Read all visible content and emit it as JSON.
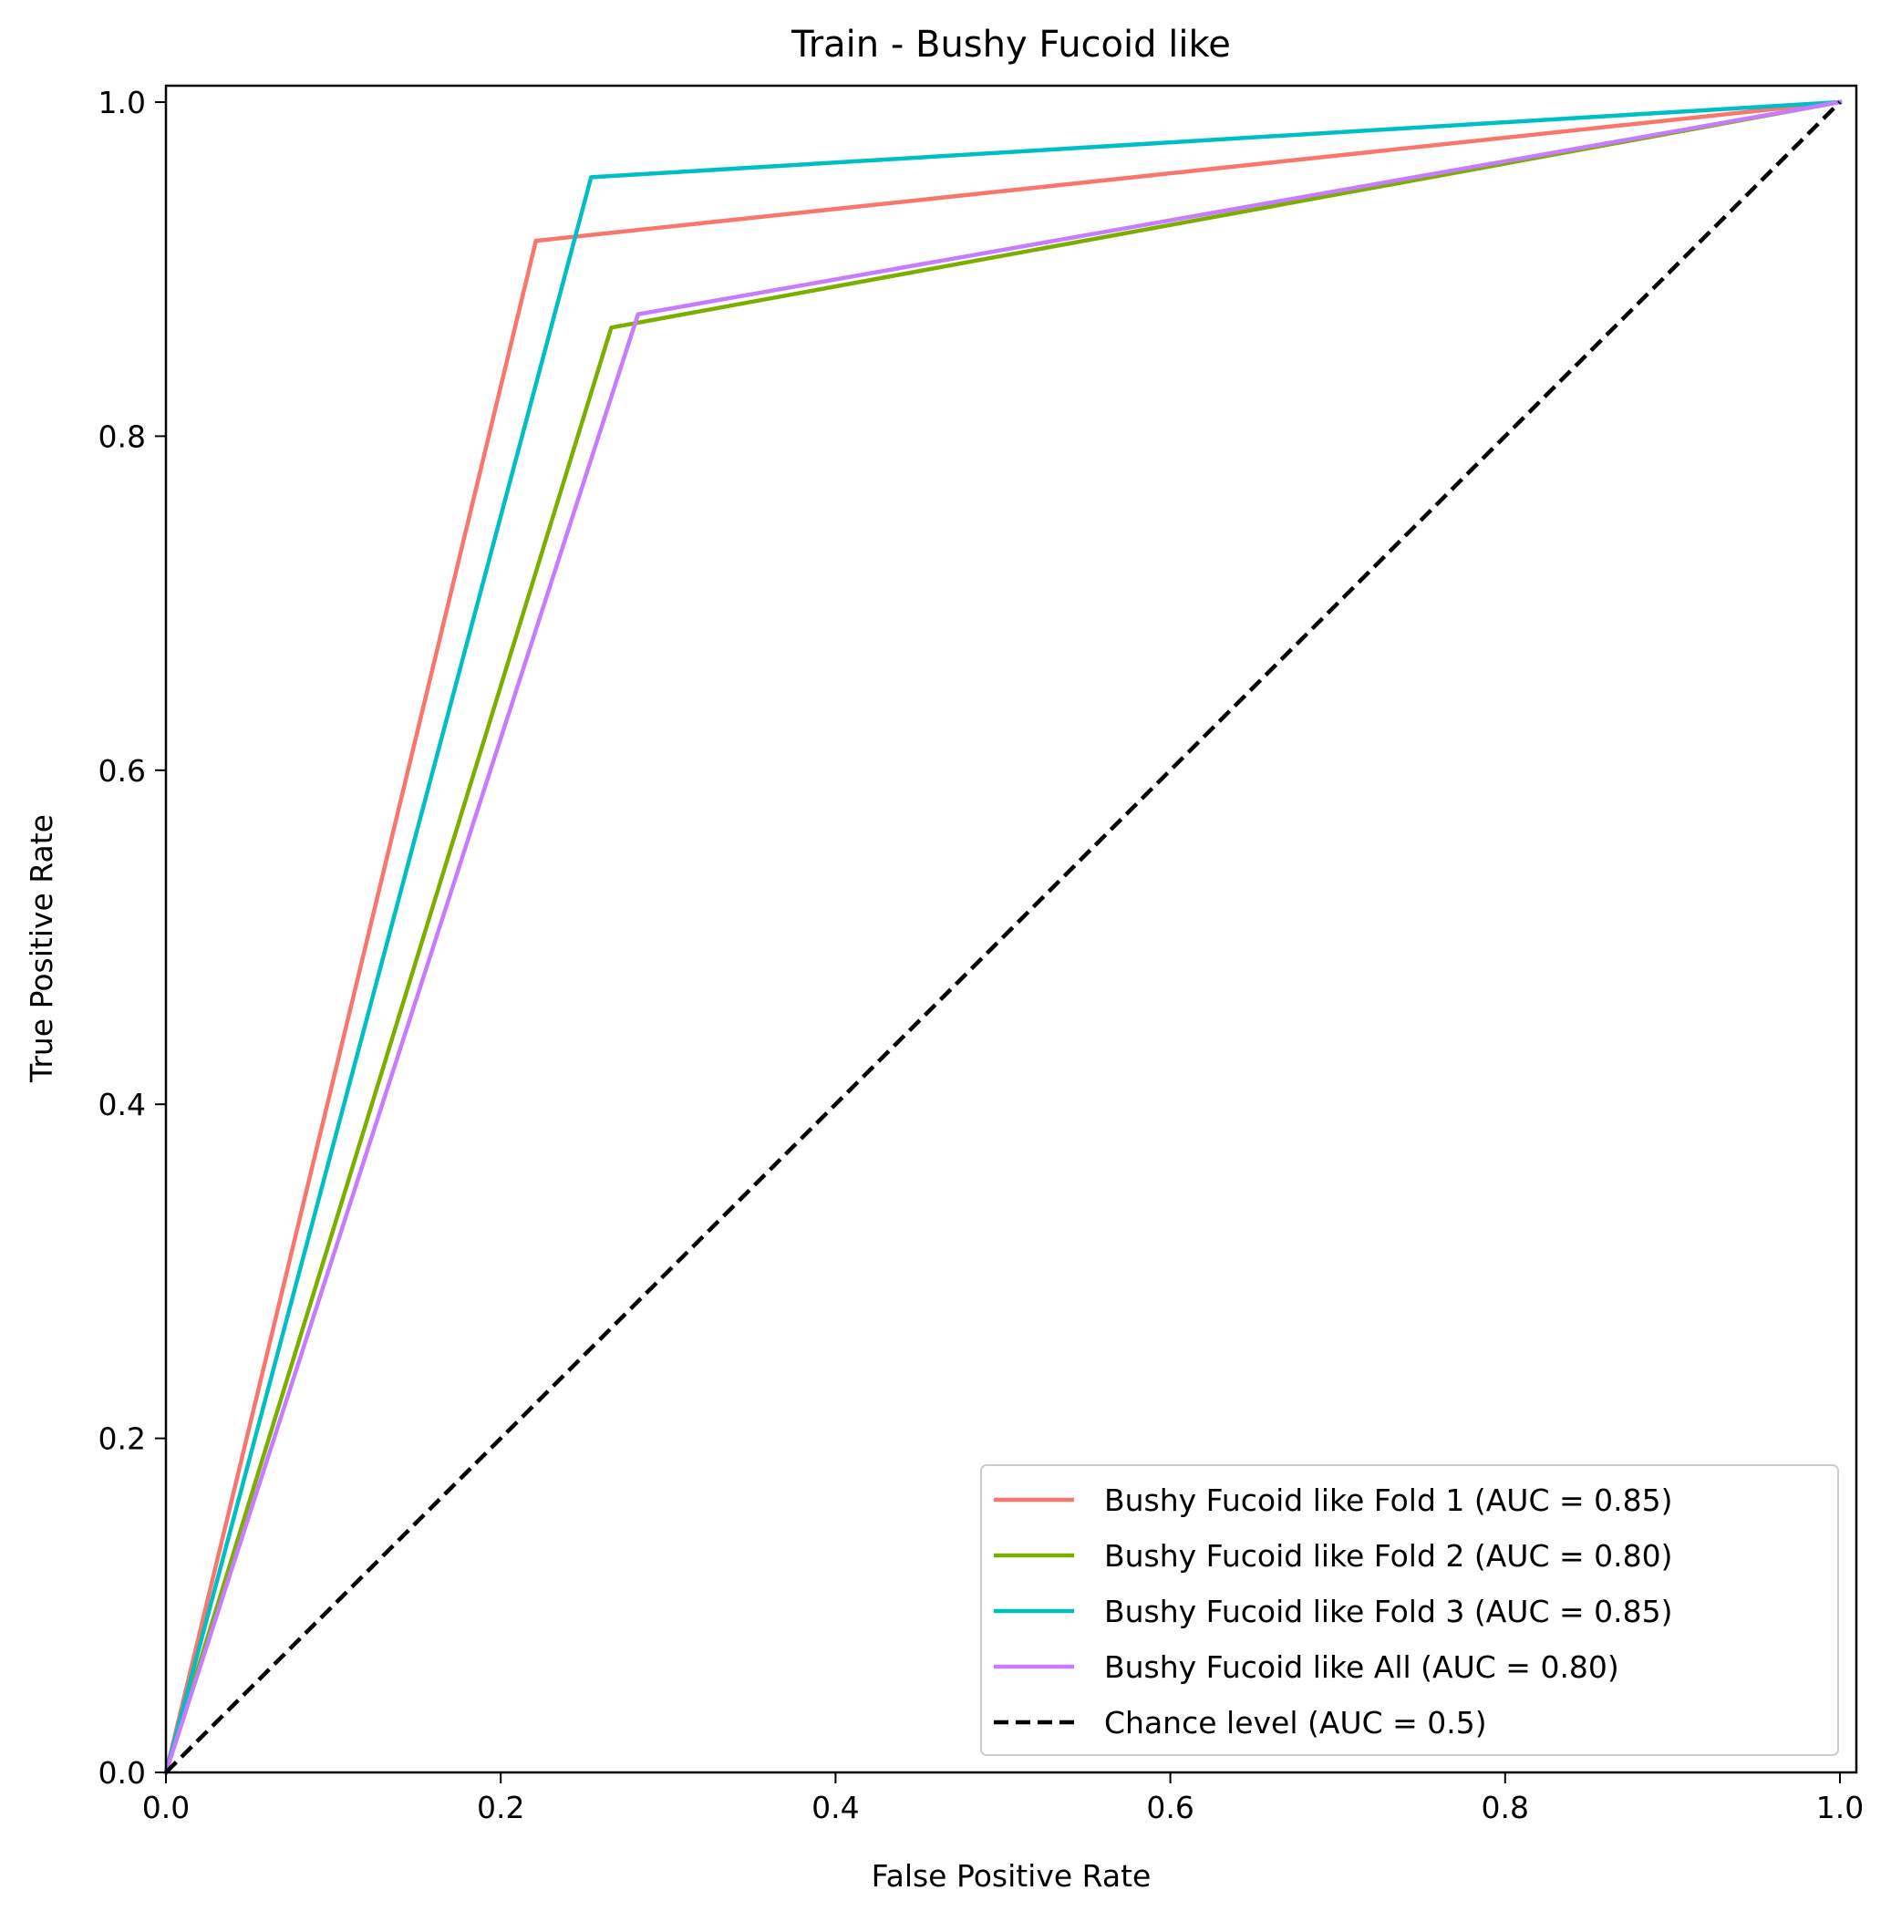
{
  "chart_data": {
    "type": "line",
    "title": "Train - Bushy Fucoid like",
    "xlabel": "False Positive Rate",
    "ylabel": "True Positive Rate",
    "xlim": [
      -0.0,
      1.01
    ],
    "ylim": [
      0.0,
      1.01
    ],
    "xticks": [
      "0.0",
      "0.2",
      "0.4",
      "0.6",
      "0.8",
      "1.0"
    ],
    "yticks": [
      "0.0",
      "0.2",
      "0.4",
      "0.6",
      "0.8",
      "1.0"
    ],
    "grid": false,
    "legend_position": "lower-right",
    "series": [
      {
        "name": "Bushy Fucoid like Fold 1 (AUC = 0.85)",
        "color": "#f8766d",
        "dash": false,
        "x": [
          0.0,
          0.221,
          1.0
        ],
        "y": [
          0.0,
          0.917,
          1.0
        ]
      },
      {
        "name": "Bushy Fucoid like Fold 2 (AUC = 0.80)",
        "color": "#7cae00",
        "dash": false,
        "x": [
          0.0,
          0.266,
          1.0
        ],
        "y": [
          0.0,
          0.865,
          1.0
        ]
      },
      {
        "name": "Bushy Fucoid like Fold 3 (AUC = 0.85)",
        "color": "#00bfc4",
        "dash": false,
        "x": [
          0.0,
          0.254,
          1.0
        ],
        "y": [
          0.0,
          0.955,
          1.0
        ]
      },
      {
        "name": "Bushy Fucoid like All (AUC = 0.80)",
        "color": "#c77cff",
        "dash": false,
        "x": [
          0.0,
          0.282,
          1.0
        ],
        "y": [
          0.0,
          0.873,
          1.0
        ]
      },
      {
        "name": "Chance level (AUC = 0.5)",
        "color": "#000000",
        "dash": true,
        "x": [
          0.0,
          1.0
        ],
        "y": [
          0.0,
          1.0
        ]
      }
    ]
  }
}
